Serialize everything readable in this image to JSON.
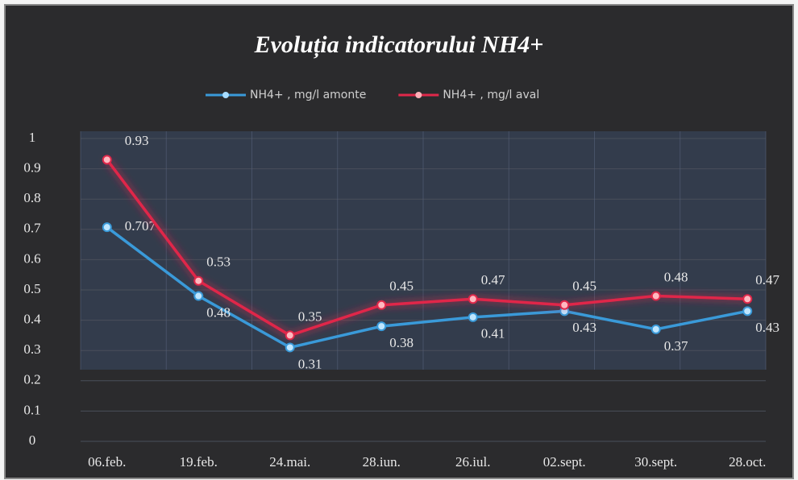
{
  "chart_data": {
    "type": "line",
    "title": "Evoluția indicatorului NH4+",
    "categories": [
      "06.feb.",
      "19.feb.",
      "24.mai.",
      "28.iun.",
      "26.iul.",
      "02.sept.",
      "30.sept.",
      "28.oct."
    ],
    "series": [
      {
        "name": "NH4+ , mg/l amonte",
        "color": "#3a9ad9",
        "values": [
          0.707,
          0.48,
          0.31,
          0.38,
          0.41,
          0.43,
          0.37,
          0.43
        ]
      },
      {
        "name": "NH4+ , mg/l aval",
        "color": "#e0284a",
        "values": [
          0.93,
          0.53,
          0.35,
          0.45,
          0.47,
          0.45,
          0.48,
          0.47
        ]
      }
    ],
    "ylim": [
      0,
      1
    ],
    "yticks": [
      0,
      0.1,
      0.2,
      0.3,
      0.4,
      0.5,
      0.6,
      0.7,
      0.8,
      0.9,
      1
    ],
    "grid": true,
    "legend": "top"
  }
}
